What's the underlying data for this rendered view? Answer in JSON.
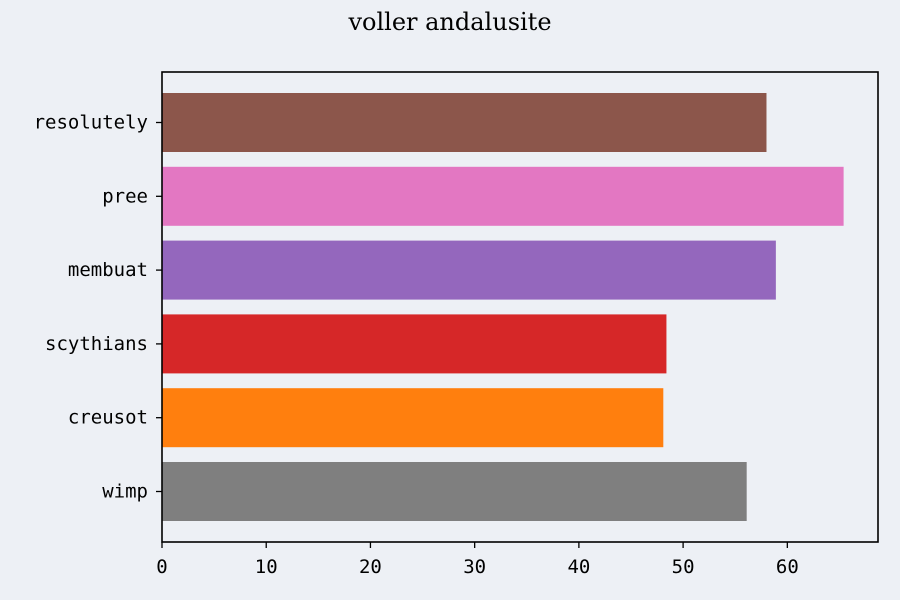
{
  "chart_data": {
    "type": "bar",
    "orientation": "horizontal",
    "title": "voller andalusite",
    "xlabel": "",
    "ylabel": "",
    "categories": [
      "resolutely",
      "pree",
      "membuat",
      "scythians",
      "creusot",
      "wimp"
    ],
    "values": [
      58.0,
      65.4,
      58.9,
      48.4,
      48.1,
      56.1
    ],
    "colors": [
      "#8c564b",
      "#e377c2",
      "#9467bd",
      "#d62728",
      "#ff7f0e",
      "#7f7f7f"
    ],
    "xlim": [
      0,
      68.7
    ],
    "xticks": [
      0,
      10,
      20,
      30,
      40,
      50,
      60
    ],
    "grid": false,
    "legend": "none",
    "background": "#edf0f5"
  }
}
